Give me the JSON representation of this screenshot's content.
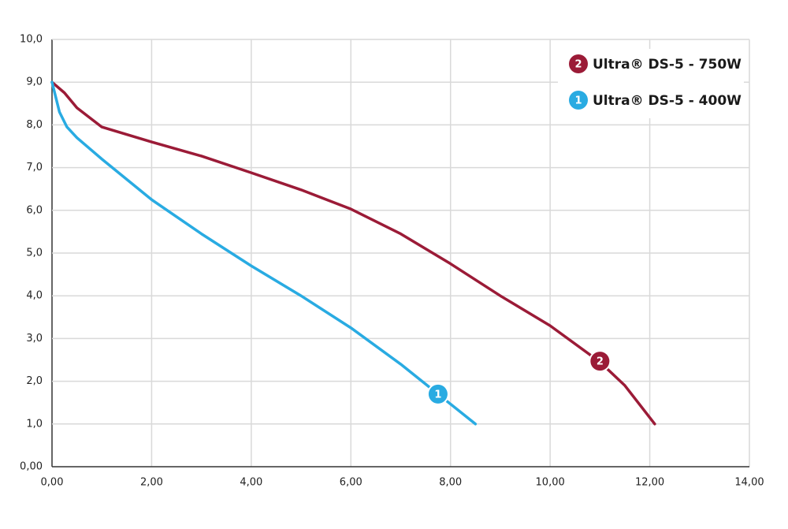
{
  "chart_data": {
    "type": "line",
    "xlim": [
      0,
      14
    ],
    "ylim": [
      0,
      10
    ],
    "xticks": [
      {
        "value": 0,
        "label": "0,00"
      },
      {
        "value": 2,
        "label": "2,00"
      },
      {
        "value": 4,
        "label": "4,00"
      },
      {
        "value": 6,
        "label": "6,00"
      },
      {
        "value": 8,
        "label": "8,00"
      },
      {
        "value": 10,
        "label": "10,00"
      },
      {
        "value": 12,
        "label": "12,00"
      },
      {
        "value": 14,
        "label": "14,00"
      }
    ],
    "yticks": [
      {
        "value": 0,
        "label": "0,00"
      },
      {
        "value": 1,
        "label": "1,0"
      },
      {
        "value": 2,
        "label": "2,0"
      },
      {
        "value": 3,
        "label": "3,0"
      },
      {
        "value": 4,
        "label": "4,0"
      },
      {
        "value": 5,
        "label": "5,0"
      },
      {
        "value": 6,
        "label": "6,0"
      },
      {
        "value": 7,
        "label": "7,0"
      },
      {
        "value": 8,
        "label": "8,0"
      },
      {
        "value": 9,
        "label": "9,0"
      },
      {
        "value": 10,
        "label": "10,0"
      }
    ],
    "grid": true,
    "legend": "upper right",
    "series": [
      {
        "name": "Ultra® DS-5 - 750W",
        "color": "#9b1b37",
        "badge": {
          "label": "2",
          "x": 11,
          "y": 2.47
        },
        "x": [
          0,
          0.25,
          0.5,
          1,
          2,
          3,
          4,
          5,
          6,
          7,
          8,
          9,
          10,
          11,
          11.5,
          12.1
        ],
        "values": [
          9.0,
          8.75,
          8.4,
          7.95,
          7.6,
          7.27,
          6.88,
          6.48,
          6.03,
          5.45,
          4.75,
          4.0,
          3.3,
          2.45,
          1.9,
          1.0
        ]
      },
      {
        "name": "Ultra® DS-5 - 400W",
        "color": "#29abe2",
        "badge": {
          "label": "1",
          "x": 7.75,
          "y": 1.7
        },
        "x": [
          0,
          0.15,
          0.3,
          0.5,
          1,
          2,
          3,
          4,
          5,
          6,
          7,
          7.75,
          8.5
        ],
        "values": [
          9.0,
          8.3,
          7.95,
          7.7,
          7.2,
          6.25,
          5.45,
          4.7,
          4.0,
          3.25,
          2.4,
          1.7,
          1.0
        ]
      }
    ]
  }
}
